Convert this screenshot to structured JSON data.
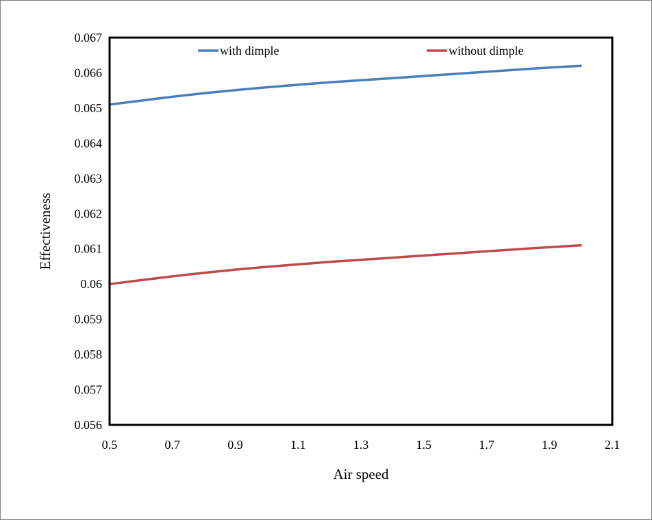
{
  "chart_data": {
    "type": "line",
    "xlabel": "Air speed",
    "ylabel": "Effectiveness",
    "xlim": [
      0.5,
      2.1
    ],
    "ylim": [
      0.056,
      0.067
    ],
    "x_ticks": [
      "0.5",
      "0.7",
      "0.9",
      "1.1",
      "1.3",
      "1.5",
      "1.7",
      "1.9",
      "2.1"
    ],
    "y_ticks": [
      "0.056",
      "0.057",
      "0.058",
      "0.059",
      "0.06",
      "0.061",
      "0.062",
      "0.063",
      "0.064",
      "0.065",
      "0.066",
      "0.067"
    ],
    "grid": false,
    "legend_position": "top",
    "series": [
      {
        "name": "with dimple",
        "color": "#4a7ebb",
        "x": [
          0.5,
          0.6,
          0.7,
          0.8,
          0.9,
          1.0,
          1.1,
          1.2,
          1.3,
          1.4,
          1.5,
          1.6,
          1.7,
          1.8,
          1.9,
          2.0
        ],
        "y": [
          0.0651,
          0.06521,
          0.06532,
          0.06542,
          0.06551,
          0.06559,
          0.06566,
          0.06573,
          0.06579,
          0.06585,
          0.06591,
          0.06597,
          0.06603,
          0.06609,
          0.06615,
          0.0662
        ]
      },
      {
        "name": "without dimple",
        "color": "#be4b48",
        "x": [
          0.5,
          0.6,
          0.7,
          0.8,
          0.9,
          1.0,
          1.1,
          1.2,
          1.3,
          1.4,
          1.5,
          1.6,
          1.7,
          1.8,
          1.9,
          2.0
        ],
        "y": [
          0.06,
          0.06011,
          0.06022,
          0.06032,
          0.06041,
          0.06049,
          0.06056,
          0.06063,
          0.06069,
          0.06075,
          0.06081,
          0.06087,
          0.06093,
          0.06099,
          0.06105,
          0.0611
        ]
      }
    ]
  }
}
